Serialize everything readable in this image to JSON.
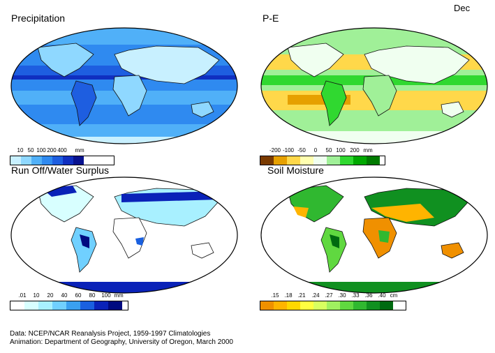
{
  "month": "Dec",
  "panels": [
    {
      "title": "Precipitation",
      "unit": "mm",
      "legend": [
        "10",
        "50",
        "100",
        "200",
        "400"
      ],
      "colors": [
        "#c8f0ff",
        "#8fd8ff",
        "#50b0f8",
        "#2f8af0",
        "#1e5ee0",
        "#102fc0",
        "#08128f"
      ]
    },
    {
      "title": "P-E",
      "unit": "mm",
      "legend": [
        "-200",
        "-100",
        "-50",
        "0",
        "50",
        "100",
        "200"
      ],
      "colors": [
        "#7a3a00",
        "#e6a000",
        "#ffd84a",
        "#ffffb0",
        "#f0fff0",
        "#a0f098",
        "#30d830",
        "#00a800",
        "#007a00"
      ]
    },
    {
      "title": "Run Off/Water Surplus",
      "unit": "mm",
      "legend": [
        ".01",
        "10",
        "20",
        "40",
        "60",
        "80",
        "100"
      ],
      "colors": [
        "#ffffff",
        "#d8ffff",
        "#a8f0ff",
        "#70d0ff",
        "#3aa0f0",
        "#1a60e0",
        "#0a22b8",
        "#000a80"
      ]
    },
    {
      "title": "Soil Moisture",
      "unit": "cm",
      "legend": [
        ".15",
        ".18",
        ".21",
        ".24",
        ".27",
        ".30",
        ".33",
        ".36",
        ".40"
      ],
      "colors": [
        "#f09000",
        "#ffb400",
        "#ffd800",
        "#ffff40",
        "#d8ff60",
        "#a0f060",
        "#60d840",
        "#30b830",
        "#109020",
        "#006a10"
      ]
    }
  ],
  "credits": {
    "line1": "Data:  NCEP/NCAR Reanalysis Project, 1959-1997 Climatologies",
    "line2": "Animation:  Department of Geography, University of Oregon, March 2000"
  }
}
